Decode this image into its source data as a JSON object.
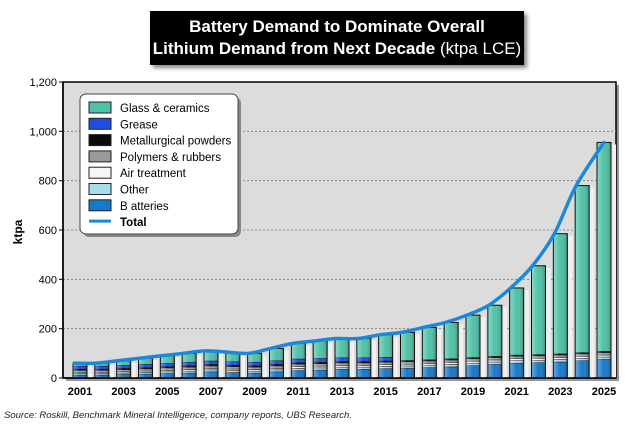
{
  "chart_data": {
    "type": "bar",
    "stacked": true,
    "title_line1": "Battery Demand to Dominate Overall",
    "title_line2": "Lithium Demand from Next Decade",
    "title_unit": "(ktpa LCE)",
    "ylabel": "ktpa",
    "xlabel": "",
    "ylim": [
      0,
      1200
    ],
    "yticks": [
      "0",
      "200",
      "400",
      "600",
      "800",
      "1,000",
      "1,200"
    ],
    "ytick_values": [
      0,
      200,
      400,
      600,
      800,
      1000,
      1200
    ],
    "grid": true,
    "legend_position": "top-left",
    "categories": [
      2001,
      2002,
      2003,
      2004,
      2005,
      2006,
      2007,
      2008,
      2009,
      2010,
      2011,
      2012,
      2013,
      2014,
      2015,
      2016,
      2017,
      2018,
      2019,
      2020,
      2021,
      2022,
      2023,
      2024,
      2025
    ],
    "xtick_labels": [
      "2001",
      "2003",
      "2005",
      "2007",
      "2009",
      "2011",
      "2013",
      "2015",
      "2017",
      "2019",
      "2021",
      "2023",
      "2025"
    ],
    "series": [
      {
        "name": "B atteries",
        "color": "#1a78c8",
        "values": [
          12,
          12,
          14,
          16,
          18,
          20,
          25,
          22,
          20,
          25,
          30,
          32,
          35,
          35,
          38,
          40,
          42,
          45,
          50,
          55,
          60,
          62,
          65,
          70,
          75
        ]
      },
      {
        "name": "Other",
        "color": "#a8dcef",
        "values": [
          6,
          6,
          6,
          7,
          7,
          8,
          8,
          8,
          8,
          8,
          9,
          9,
          9,
          9,
          9,
          9,
          10,
          10,
          10,
          10,
          10,
          10,
          10,
          10,
          10
        ]
      },
      {
        "name": "Air treatment",
        "color": "#f6f6f6",
        "values": [
          5,
          5,
          5,
          5,
          6,
          6,
          6,
          6,
          6,
          6,
          7,
          7,
          7,
          7,
          7,
          7,
          7,
          8,
          8,
          8,
          8,
          8,
          8,
          8,
          8
        ]
      },
      {
        "name": "Polymers & rubbers",
        "color": "#9a9a9a",
        "values": [
          8,
          8,
          9,
          9,
          10,
          10,
          10,
          10,
          10,
          10,
          10,
          10,
          10,
          10,
          10,
          10,
          10,
          10,
          10,
          10,
          10,
          10,
          10,
          10,
          10
        ]
      },
      {
        "name": "Metallurgical powders",
        "color": "#0a0a0a",
        "values": [
          5,
          5,
          5,
          5,
          5,
          6,
          6,
          6,
          6,
          6,
          6,
          6,
          6,
          6,
          5,
          5,
          5,
          5,
          5,
          5,
          5,
          5,
          5,
          5,
          5
        ]
      },
      {
        "name": "Grease",
        "color": "#1f4fe0",
        "values": [
          12,
          12,
          12,
          13,
          13,
          14,
          14,
          14,
          14,
          15,
          15,
          15,
          15,
          15,
          15,
          0,
          0,
          0,
          0,
          0,
          0,
          0,
          0,
          0,
          0
        ]
      },
      {
        "name": "Glass & ceramics",
        "color": "#4fc1a6",
        "values": [
          12,
          12,
          19,
          25,
          31,
          36,
          41,
          39,
          36,
          50,
          63,
          71,
          78,
          78,
          91,
          114,
          131,
          147,
          172,
          207,
          272,
          360,
          487,
          677,
          847
        ]
      }
    ],
    "line": {
      "name": "Total",
      "color": "#1e88d8",
      "values": [
        60,
        60,
        70,
        80,
        90,
        100,
        110,
        105,
        100,
        120,
        140,
        150,
        160,
        160,
        175,
        185,
        205,
        225,
        255,
        295,
        365,
        455,
        585,
        780,
        955
      ]
    },
    "source": "Source: Roskill, Benchmark Mineral Intelligence, company reports, UBS Research."
  }
}
